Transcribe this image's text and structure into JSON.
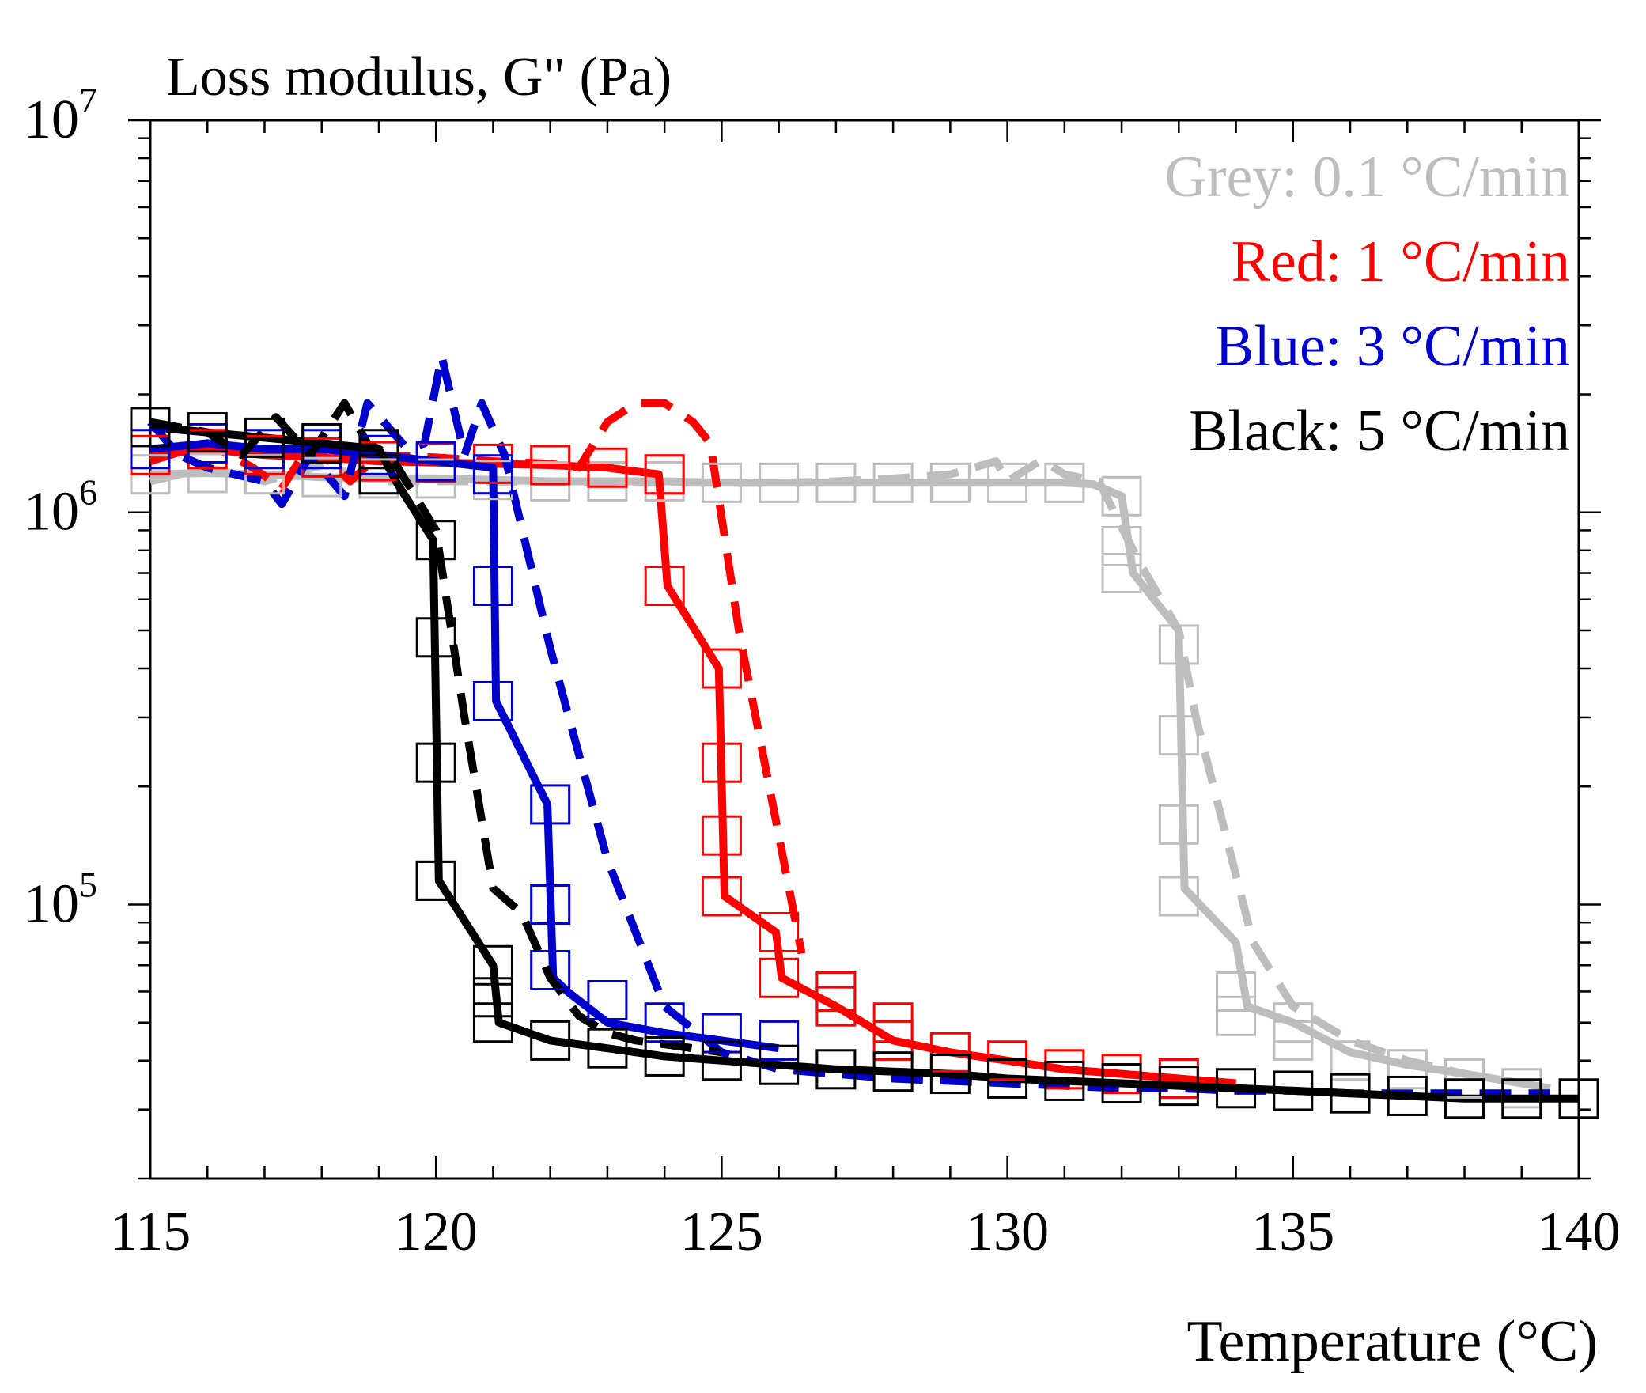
{
  "chart_data": {
    "type": "line",
    "title": "Loss modulus, G\" (Pa)",
    "xlabel": "Temperature (°C)",
    "ylabel": "",
    "xlim": [
      115,
      140
    ],
    "ylim": [
      20000,
      10000000
    ],
    "yscale": "log",
    "x_ticks": [
      115,
      120,
      125,
      130,
      135,
      140
    ],
    "x_tick_labels": [
      "115",
      "120",
      "125",
      "130",
      "135",
      "140"
    ],
    "y_tick_labels": [
      {
        "value": 10000000,
        "base": "10",
        "exp": "7"
      },
      {
        "value": 1000000,
        "base": "10",
        "exp": "6"
      },
      {
        "value": 100000,
        "base": "10",
        "exp": "5"
      }
    ],
    "legend": {
      "placement": "top-right",
      "entries": [
        {
          "label": "Grey: 0.1 °C/min",
          "color": "#bdbdbd"
        },
        {
          "label": "Red: 1 °C/min",
          "color": "#ff0000"
        },
        {
          "label": "Blue: 3 °C/min",
          "color": "#0000cc"
        },
        {
          "label": "Black: 5 °C/min",
          "color": "#000000"
        }
      ]
    },
    "series": [
      {
        "color": "#bdbdbd",
        "style": "solid",
        "x": [
          115,
          116,
          117,
          118,
          119,
          120,
          121,
          122,
          123,
          124,
          125,
          126,
          127,
          128,
          129,
          130,
          131,
          131.5,
          132,
          132.2,
          133,
          133.1,
          134,
          134.2,
          135,
          136,
          137,
          138,
          139,
          139.5
        ],
        "y": [
          1250000,
          1260000,
          1250000,
          1230000,
          1220000,
          1220000,
          1210000,
          1200000,
          1200000,
          1200000,
          1190000,
          1190000,
          1190000,
          1190000,
          1190000,
          1190000,
          1190000,
          1180000,
          1100000,
          700000,
          500000,
          110000,
          80000,
          55000,
          50000,
          42000,
          39000,
          37000,
          35000,
          34000
        ]
      },
      {
        "color": "#bdbdbd",
        "style": "dashed",
        "x": [
          115,
          116,
          117,
          118,
          119,
          120,
          121,
          122,
          123,
          124,
          125,
          126,
          127,
          128,
          129,
          129.8,
          130,
          130.6,
          131,
          131.6,
          132.3,
          133,
          133.3,
          134.3,
          135,
          136,
          137,
          138,
          139,
          139.5
        ],
        "y": [
          1200000,
          1300000,
          1200000,
          1320000,
          1200000,
          1200000,
          1200000,
          1190000,
          1190000,
          1190000,
          1190000,
          1190000,
          1200000,
          1220000,
          1250000,
          1350000,
          1200000,
          1360000,
          1250000,
          1200000,
          750000,
          500000,
          300000,
          80000,
          55000,
          45000,
          40000,
          37000,
          35000,
          34000
        ]
      },
      {
        "color": "#ff0000",
        "style": "solid",
        "x": [
          115,
          116,
          117,
          118,
          119,
          120,
          121,
          122,
          123,
          123.9,
          124.05,
          124.95,
          125.05,
          125.95,
          126.05,
          127,
          128,
          129,
          130,
          131,
          132,
          133,
          134
        ],
        "y": [
          1400000,
          1450000,
          1400000,
          1380000,
          1350000,
          1340000,
          1330000,
          1320000,
          1300000,
          1250000,
          650000,
          400000,
          105000,
          85000,
          65000,
          55000,
          45000,
          42000,
          40000,
          38000,
          37000,
          36000,
          35000
        ]
      },
      {
        "color": "#ff0000",
        "style": "dashed",
        "x": [
          115,
          116,
          116.8,
          117.3,
          117.8,
          118.5,
          119,
          120,
          121,
          122,
          122.5,
          123,
          123.5,
          124,
          124.5,
          124.8,
          125.3,
          126,
          126.4
        ],
        "y": [
          1350000,
          1500000,
          1300000,
          1150000,
          1500000,
          1200000,
          1400000,
          1380000,
          1350000,
          1330000,
          1300000,
          1700000,
          1900000,
          1900000,
          1700000,
          1500000,
          500000,
          150000,
          75000
        ]
      },
      {
        "color": "#0000cc",
        "style": "solid",
        "x": [
          115,
          116,
          117,
          118,
          119,
          120,
          121,
          121.05,
          121.95,
          122.05,
          122.3,
          123,
          124,
          125,
          126
        ],
        "y": [
          1450000,
          1500000,
          1450000,
          1450000,
          1400000,
          1350000,
          1300000,
          330000,
          180000,
          65000,
          60000,
          50000,
          47000,
          45000,
          43000
        ]
      },
      {
        "color": "#0000cc",
        "style": "dashed",
        "x": [
          115,
          115.5,
          116,
          117,
          117.3,
          117.8,
          118.4,
          118.8,
          119.5,
          119.8,
          120.1,
          120.5,
          120.8,
          121.2,
          122,
          123,
          124,
          125,
          126,
          127,
          128,
          129,
          130,
          131,
          132,
          133,
          134,
          135,
          136,
          137,
          138,
          139,
          139.5
        ],
        "y": [
          1700000,
          1400000,
          1300000,
          1200000,
          1050000,
          1400000,
          1100000,
          1900000,
          1450000,
          1500000,
          2500000,
          1400000,
          1900000,
          1400000,
          450000,
          130000,
          55000,
          42000,
          38000,
          37000,
          36000,
          35500,
          35000,
          34500,
          34000,
          34000,
          33500,
          33500,
          33000,
          33000,
          33000,
          33000,
          33000
        ]
      },
      {
        "color": "#000000",
        "style": "solid",
        "x": [
          115,
          116,
          117,
          118,
          119,
          119.3,
          119.95,
          120.05,
          121,
          121.1,
          122,
          123,
          124,
          125,
          126,
          127,
          128,
          129,
          130,
          131,
          132,
          133,
          134,
          135,
          136,
          137,
          138,
          139,
          140
        ],
        "y": [
          1650000,
          1600000,
          1550000,
          1500000,
          1450000,
          1200000,
          850000,
          115000,
          70000,
          50000,
          45000,
          43000,
          41000,
          40000,
          39000,
          38000,
          37500,
          37000,
          36000,
          35500,
          35000,
          34500,
          34000,
          33500,
          33000,
          32500,
          32000,
          32000,
          32000
        ]
      },
      {
        "color": "#000000",
        "style": "dashed",
        "x": [
          115,
          116,
          116.6,
          117.2,
          117.8,
          118.4,
          118.8,
          119.2,
          120,
          120.5,
          121,
          121.5,
          122,
          122.5,
          123,
          123.5,
          124,
          125
        ],
        "y": [
          1700000,
          1600000,
          1400000,
          1750000,
          1400000,
          1900000,
          1500000,
          1400000,
          900000,
          300000,
          110000,
          95000,
          65000,
          52000,
          47000,
          45000,
          44000,
          42000
        ]
      }
    ],
    "marker_series": [
      {
        "color": "#bdbdbd",
        "x": [
          115,
          116,
          117,
          118,
          119,
          120,
          121,
          122,
          123,
          124,
          125,
          126,
          127,
          128,
          129,
          130,
          131,
          132,
          132,
          132,
          133,
          133,
          133,
          133,
          134,
          134,
          135,
          135,
          136,
          137,
          138,
          139
        ],
        "y": [
          1250000,
          1260000,
          1250000,
          1230000,
          1220000,
          1220000,
          1210000,
          1200000,
          1200000,
          1200000,
          1190000,
          1190000,
          1190000,
          1190000,
          1190000,
          1190000,
          1190000,
          1100000,
          820000,
          700000,
          460000,
          270000,
          160000,
          105000,
          60000,
          52000,
          50000,
          45000,
          40000,
          38000,
          36000,
          34000
        ]
      },
      {
        "color": "#ff0000",
        "x": [
          115,
          116,
          117,
          118,
          119,
          120,
          121,
          122,
          123,
          124,
          124,
          125,
          125,
          125,
          125,
          126,
          126,
          127,
          127,
          128,
          128,
          129,
          130,
          131,
          132,
          133
        ],
        "y": [
          1400000,
          1450000,
          1400000,
          1380000,
          1350000,
          1340000,
          1330000,
          1320000,
          1300000,
          1250000,
          650000,
          400000,
          230000,
          150000,
          105000,
          85000,
          65000,
          60000,
          55000,
          50000,
          45000,
          42000,
          40000,
          38000,
          37000,
          36000
        ]
      },
      {
        "color": "#0000cc",
        "x": [
          115,
          116,
          117,
          118,
          119,
          120,
          121,
          121,
          121,
          122,
          122,
          122,
          123,
          124,
          125,
          126
        ],
        "y": [
          1450000,
          1500000,
          1450000,
          1450000,
          1400000,
          1350000,
          1250000,
          650000,
          330000,
          180000,
          100000,
          68000,
          57000,
          50000,
          47000,
          45000
        ]
      },
      {
        "color": "#000000",
        "x": [
          115,
          116,
          117,
          118,
          119,
          119,
          120,
          120,
          120,
          120,
          120,
          121,
          121,
          121,
          122,
          123,
          124,
          125,
          126,
          127,
          128,
          129,
          130,
          131,
          132,
          133,
          134,
          135,
          136,
          137,
          138,
          139,
          140
        ],
        "y": [
          1650000,
          1600000,
          1550000,
          1500000,
          1450000,
          1250000,
          850000,
          480000,
          230000,
          115000,
          115000,
          70000,
          58000,
          50000,
          45000,
          43000,
          41000,
          40000,
          39000,
          38000,
          37500,
          37000,
          36000,
          35500,
          35000,
          34500,
          34000,
          33500,
          33000,
          32500,
          32000,
          32000,
          32000
        ]
      }
    ]
  }
}
